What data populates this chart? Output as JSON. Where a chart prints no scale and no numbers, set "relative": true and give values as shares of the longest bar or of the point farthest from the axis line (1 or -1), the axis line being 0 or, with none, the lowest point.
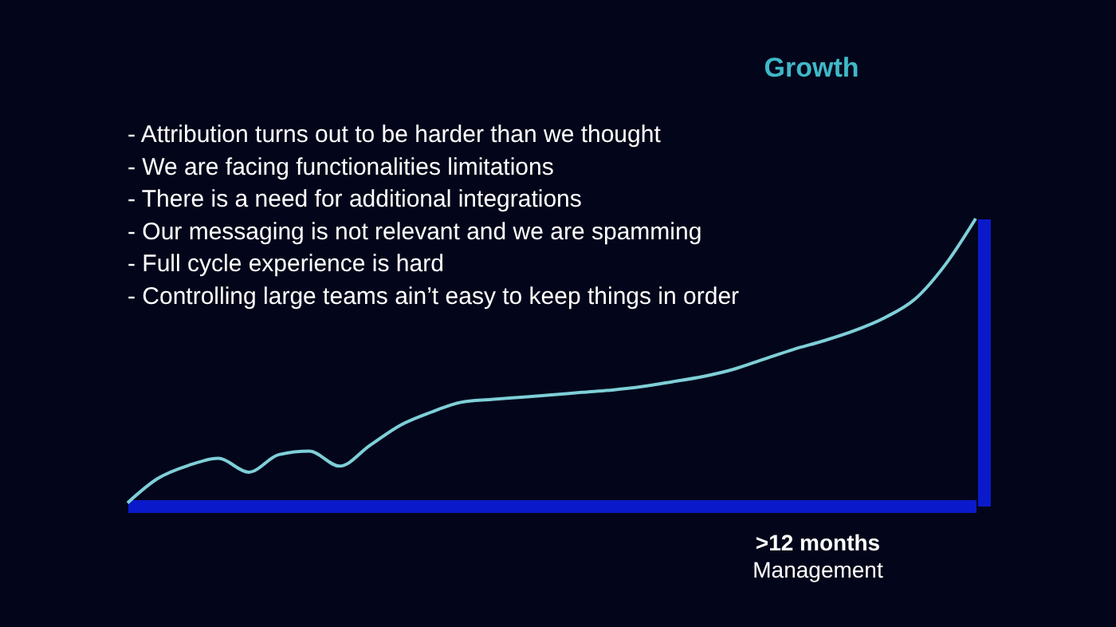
{
  "chart_data": {
    "type": "line",
    "relative": true,
    "title": "Growth",
    "xlabel": ">12 months",
    "annotations": [
      "- Attribution turns out to be harder than we thought",
      "- We are facing functionalities limitations",
      "- There is a need for additional integrations",
      "- Our messaging is not relevant and we are spamming",
      "- Full cycle experience is hard",
      "- Controlling large teams ain’t easy to keep things in order",
      "Management"
    ],
    "categories": [
      null,
      null,
      null,
      null,
      null,
      null,
      null,
      null,
      null,
      null,
      null,
      null,
      null,
      null,
      null,
      null,
      null,
      null,
      null,
      null,
      null,
      null,
      null,
      null,
      null,
      null,
      null,
      null,
      null
    ],
    "series": [
      {
        "color": "#7ecfd8",
        "values": [
          0.01,
          0.095,
          0.14,
          0.165,
          0.117,
          0.178,
          0.19,
          0.138,
          0.21,
          0.28,
          0.325,
          0.36,
          0.37,
          0.378,
          0.386,
          0.395,
          0.403,
          0.415,
          0.432,
          0.45,
          0.475,
          0.51,
          0.545,
          0.575,
          0.61,
          0.655,
          0.72,
          0.84,
          1
        ]
      }
    ],
    "grid": false
  }
}
